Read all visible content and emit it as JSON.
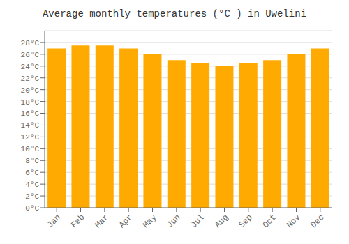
{
  "chart_data": {
    "type": "bar",
    "title": "Average monthly temperatures (°C ) in Uwelini",
    "categories": [
      "Jan",
      "Feb",
      "Mar",
      "Apr",
      "May",
      "Jun",
      "Jul",
      "Aug",
      "Sep",
      "Oct",
      "Nov",
      "Dec"
    ],
    "values": [
      27.0,
      27.5,
      27.5,
      27.0,
      26.0,
      25.0,
      24.5,
      24.0,
      24.5,
      25.0,
      26.0,
      27.0
    ],
    "color": "#FFAA00",
    "ylim": [
      0,
      30
    ],
    "yticks": [
      {
        "value": 0,
        "label": "0°C"
      },
      {
        "value": 2,
        "label": "2°C"
      },
      {
        "value": 4,
        "label": "4°C"
      },
      {
        "value": 6,
        "label": "6°C"
      },
      {
        "value": 8,
        "label": "8°C"
      },
      {
        "value": 10,
        "label": "10°C"
      },
      {
        "value": 12,
        "label": "12°C"
      },
      {
        "value": 14,
        "label": "14°C"
      },
      {
        "value": 16,
        "label": "16°C"
      },
      {
        "value": 18,
        "label": "18°C"
      },
      {
        "value": 20,
        "label": "20°C"
      },
      {
        "value": 22,
        "label": "22°C"
      },
      {
        "value": 24,
        "label": "24°C"
      },
      {
        "value": 26,
        "label": "26°C"
      },
      {
        "value": 28,
        "label": "28°C"
      }
    ],
    "grid": true
  }
}
